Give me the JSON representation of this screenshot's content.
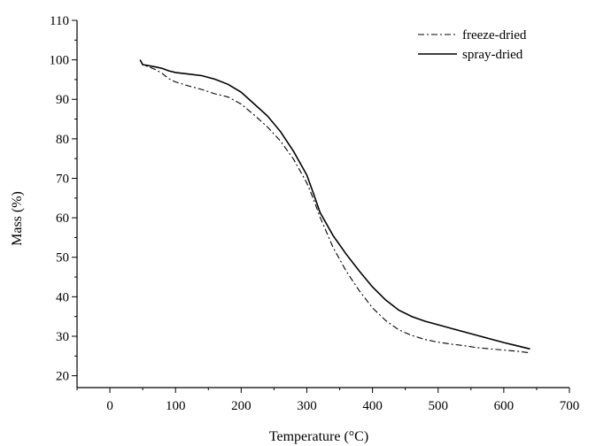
{
  "chart_data": {
    "type": "line",
    "title": "",
    "xlabel": "Temperature (°C)",
    "ylabel": "Mass (%)",
    "xlim": [
      -50,
      700
    ],
    "ylim": [
      17,
      110
    ],
    "xticks": [
      0,
      100,
      200,
      300,
      400,
      500,
      600,
      700
    ],
    "yticks": [
      20,
      30,
      40,
      50,
      60,
      70,
      80,
      90,
      100,
      110
    ],
    "grid": false,
    "legend_position": "top-right",
    "series": [
      {
        "name": "freeze-dried",
        "style": "dash-dot",
        "color": "#000000",
        "x": [
          46,
          50,
          60,
          70,
          80,
          90,
          100,
          120,
          140,
          160,
          180,
          200,
          220,
          240,
          260,
          280,
          300,
          310,
          320,
          340,
          360,
          380,
          400,
          420,
          440,
          460,
          480,
          500,
          520,
          540,
          560,
          580,
          600,
          620,
          640
        ],
        "y": [
          100,
          98.8,
          98.2,
          97.5,
          96.5,
          95.2,
          94.4,
          93.4,
          92.5,
          91.4,
          90.6,
          88.8,
          86.0,
          83.0,
          79.4,
          74.8,
          68.8,
          64.8,
          60.2,
          52.5,
          46.5,
          41.5,
          37.2,
          34.0,
          31.6,
          30.2,
          29.2,
          28.5,
          28.0,
          27.6,
          27.1,
          26.8,
          26.5,
          26.2,
          25.8
        ]
      },
      {
        "name": "spray-dried",
        "style": "solid",
        "color": "#000000",
        "x": [
          46,
          50,
          60,
          70,
          80,
          90,
          100,
          120,
          140,
          160,
          180,
          200,
          220,
          240,
          260,
          280,
          300,
          310,
          320,
          340,
          360,
          380,
          400,
          420,
          440,
          460,
          480,
          500,
          520,
          540,
          560,
          580,
          600,
          620,
          640
        ],
        "y": [
          100,
          98.8,
          98.5,
          98.2,
          97.8,
          97.2,
          96.8,
          96.4,
          96.0,
          95.1,
          93.8,
          91.8,
          88.8,
          85.8,
          81.8,
          76.8,
          70.8,
          66.2,
          61.4,
          55.5,
          50.8,
          46.5,
          42.5,
          39.2,
          36.6,
          35.0,
          33.8,
          32.9,
          32.0,
          31.1,
          30.2,
          29.3,
          28.4,
          27.6,
          26.8
        ]
      }
    ]
  }
}
